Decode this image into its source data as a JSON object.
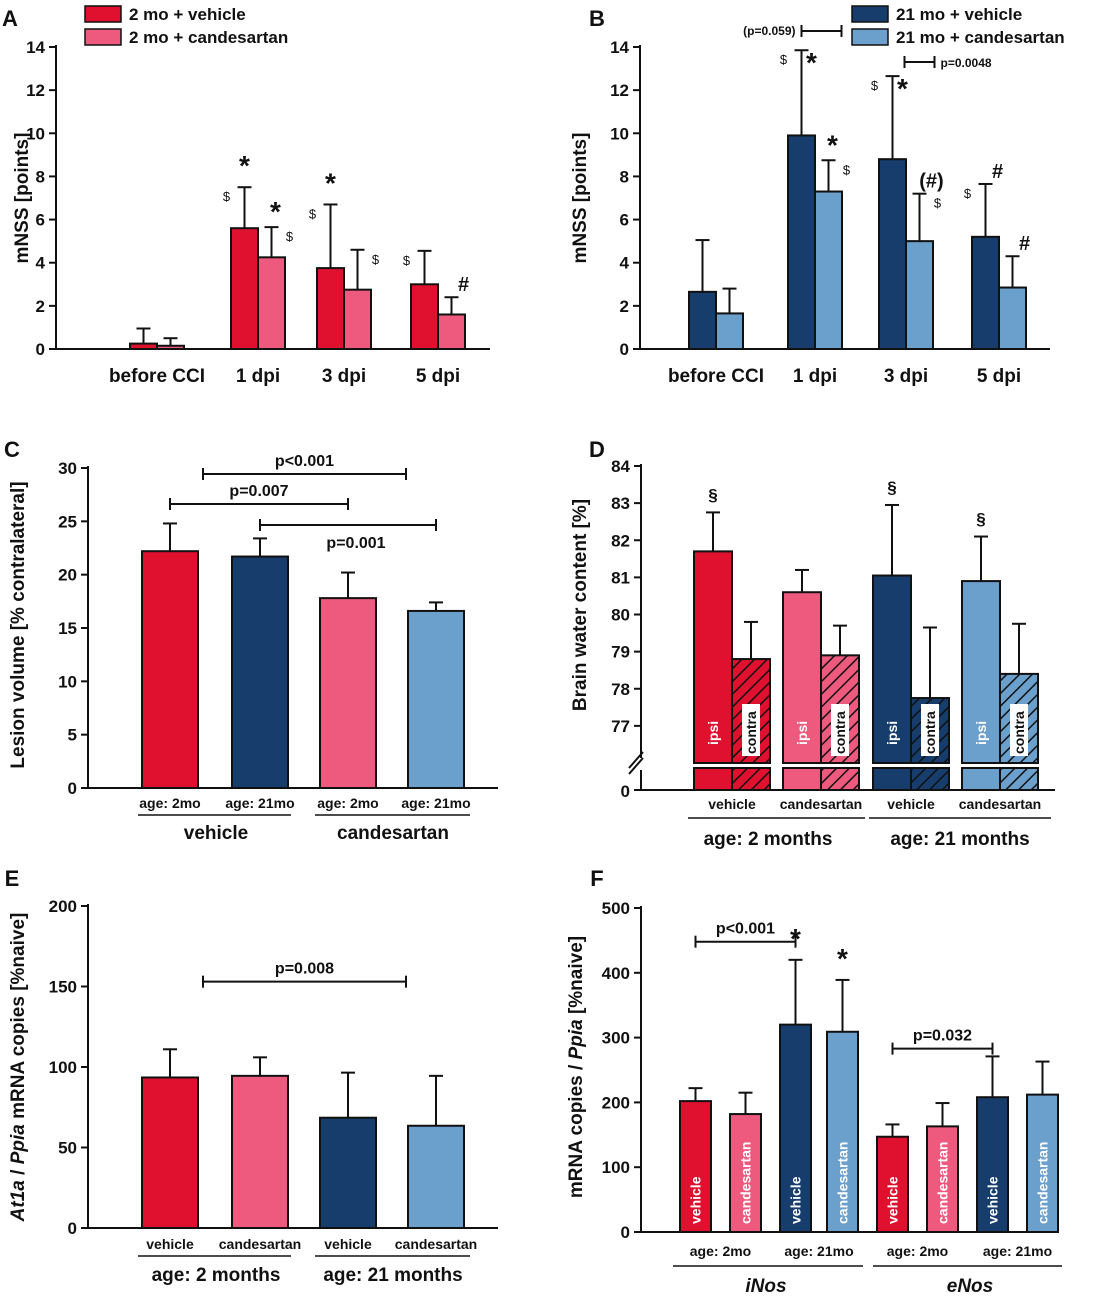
{
  "colors": {
    "young_vehicle": "#e0102f",
    "young_candesartan": "#ee5a7e",
    "old_vehicle": "#163d6b",
    "old_candesartan": "#6b9fcc"
  },
  "chart_data": [
    {
      "panel": "A",
      "type": "bar",
      "ylabel": "mNSS [points]",
      "ylim": [
        0,
        14
      ],
      "yticks": [
        0,
        2,
        4,
        6,
        8,
        10,
        12,
        14
      ],
      "categories": [
        "before CCI",
        "1 dpi",
        "3 dpi",
        "5 dpi"
      ],
      "series": [
        {
          "name": "2 mo + vehicle",
          "color_key": "young_vehicle",
          "values": [
            0.25,
            5.6,
            3.75,
            3.0
          ],
          "errors": [
            0.7,
            1.9,
            2.95,
            1.55
          ]
        },
        {
          "name": "2 mo + candesartan",
          "color_key": "young_candesartan",
          "values": [
            0.15,
            4.25,
            2.75,
            1.6
          ],
          "errors": [
            0.35,
            1.4,
            1.85,
            0.8
          ]
        }
      ],
      "annotations": [
        {
          "cat": 1,
          "s": 0,
          "marks": [
            "$",
            "*"
          ]
        },
        {
          "cat": 1,
          "s": 1,
          "marks": [
            "*",
            "$"
          ]
        },
        {
          "cat": 2,
          "s": 0,
          "marks": [
            "$",
            "*"
          ]
        },
        {
          "cat": 2,
          "s": 1,
          "marks": [
            "$"
          ]
        },
        {
          "cat": 3,
          "s": 0,
          "marks": [
            "$"
          ]
        },
        {
          "cat": 3,
          "s": 1,
          "marks": [
            "#"
          ]
        }
      ]
    },
    {
      "panel": "B",
      "type": "bar",
      "ylabel": "mNSS [points]",
      "ylim": [
        0,
        14
      ],
      "yticks": [
        0,
        2,
        4,
        6,
        8,
        10,
        12,
        14
      ],
      "categories": [
        "before CCI",
        "1 dpi",
        "3 dpi",
        "5 dpi"
      ],
      "series": [
        {
          "name": "21 mo + vehicle",
          "color_key": "old_vehicle",
          "values": [
            2.65,
            9.9,
            8.8,
            5.2
          ],
          "errors": [
            2.4,
            3.95,
            3.85,
            2.45
          ]
        },
        {
          "name": "21 mo + candesartan",
          "color_key": "old_candesartan",
          "values": [
            1.65,
            7.3,
            5.0,
            2.85
          ],
          "errors": [
            1.15,
            1.45,
            2.2,
            1.45
          ]
        }
      ],
      "annotations": [
        {
          "cat": 1,
          "s": 0,
          "marks": [
            "$",
            "*"
          ]
        },
        {
          "cat": 1,
          "s": 1,
          "marks": [
            "*",
            "$"
          ]
        },
        {
          "cat": 2,
          "s": 0,
          "marks": [
            "$",
            "*"
          ]
        },
        {
          "cat": 2,
          "s": 1,
          "marks": [
            "(#)",
            "$"
          ]
        },
        {
          "cat": 3,
          "s": 0,
          "marks": [
            "$",
            "#"
          ]
        },
        {
          "cat": 3,
          "s": 1,
          "marks": [
            "#"
          ]
        }
      ],
      "comparisons": [
        {
          "label": "(p=0.059)",
          "cat": 1
        },
        {
          "label": "p=0.0048",
          "cat": 2
        }
      ]
    },
    {
      "panel": "C",
      "type": "bar",
      "ylabel": "Lesion volume [% contralateral]",
      "ylim": [
        0,
        30
      ],
      "yticks": [
        0,
        5,
        10,
        15,
        20,
        25,
        30
      ],
      "bars": [
        {
          "label": "age: 2mo",
          "color_key": "young_vehicle",
          "value": 22.2,
          "error": 2.6
        },
        {
          "label": "age: 21mo",
          "color_key": "old_vehicle",
          "value": 21.7,
          "error": 1.7
        },
        {
          "label": "age: 2mo",
          "color_key": "young_candesartan",
          "value": 17.8,
          "error": 2.4
        },
        {
          "label": "age: 21mo",
          "color_key": "old_candesartan",
          "value": 16.6,
          "error": 0.8
        }
      ],
      "groups": [
        "vehicle",
        "candesartan"
      ],
      "comparisons": [
        {
          "label": "p<0.001",
          "from": 0,
          "to": 2,
          "y": 29.1
        },
        {
          "label": "p=0.007",
          "from": 0,
          "to": 2,
          "y": 26.6
        },
        {
          "label": "p=0.001",
          "from": 1,
          "to": 3,
          "y": 24.4
        }
      ]
    },
    {
      "panel": "D",
      "type": "bar",
      "ylabel": "Brain water content [%]",
      "ylim": [
        76,
        84
      ],
      "axis_break": true,
      "yticks": [
        77,
        78,
        79,
        80,
        81,
        82,
        83,
        84
      ],
      "zero_tick": "0",
      "pairs": [
        {
          "treatment": "vehicle",
          "color_key": "young_vehicle",
          "ipsi": 81.7,
          "ipsi_err": 1.05,
          "contra": 78.8,
          "contra_err": 1.0,
          "mark": "§"
        },
        {
          "treatment": "candesartan",
          "color_key": "young_candesartan",
          "ipsi": 80.6,
          "ipsi_err": 0.6,
          "contra": 78.9,
          "contra_err": 0.8,
          "mark": ""
        },
        {
          "treatment": "vehicle",
          "color_key": "old_vehicle",
          "ipsi": 81.05,
          "ipsi_err": 1.9,
          "contra": 77.75,
          "contra_err": 1.9,
          "mark": "§"
        },
        {
          "treatment": "candesartan",
          "color_key": "old_candesartan",
          "ipsi": 80.9,
          "ipsi_err": 1.2,
          "contra": 78.4,
          "contra_err": 1.35,
          "mark": "§"
        }
      ],
      "bar_labels": {
        "ipsi": "ipsi",
        "contra": "contra"
      },
      "groups": [
        "age: 2 months",
        "age: 21 months"
      ]
    },
    {
      "panel": "E",
      "type": "bar",
      "ylabel_parts": [
        "At1a",
        " / ",
        "Ppia",
        " mRNA copies [%naive]"
      ],
      "ylim": [
        0,
        200
      ],
      "yticks": [
        0,
        50,
        100,
        150,
        200
      ],
      "bars": [
        {
          "label": "vehicle",
          "color_key": "young_vehicle",
          "value": 93.5,
          "error": 17.5
        },
        {
          "label": "candesartan",
          "color_key": "young_candesartan",
          "value": 94.5,
          "error": 11.5
        },
        {
          "label": "vehicle",
          "color_key": "old_vehicle",
          "value": 68.5,
          "error": 28
        },
        {
          "label": "candesartan",
          "color_key": "old_candesartan",
          "value": 63.5,
          "error": 31
        }
      ],
      "groups": [
        "age: 2 months",
        "age: 21 months"
      ],
      "comparisons": [
        {
          "label": "p=0.008",
          "from": 0,
          "to": 2,
          "y": 153
        }
      ]
    },
    {
      "panel": "F",
      "type": "bar",
      "ylabel_parts": [
        "mRNA copies / ",
        "Ppia",
        " [%naive]"
      ],
      "ylim": [
        0,
        500
      ],
      "yticks": [
        0,
        100,
        200,
        300,
        400,
        500
      ],
      "bars": [
        {
          "label": "vehicle",
          "color_key": "young_vehicle",
          "value": 202,
          "error": 20,
          "mark": ""
        },
        {
          "label": "candesartan",
          "color_key": "young_candesartan",
          "value": 182,
          "error": 33,
          "mark": ""
        },
        {
          "label": "vehicle",
          "color_key": "old_vehicle",
          "value": 320,
          "error": 100,
          "mark": "*"
        },
        {
          "label": "candesartan",
          "color_key": "old_candesartan",
          "value": 309,
          "error": 80,
          "mark": "*"
        },
        {
          "label": "vehicle",
          "color_key": "young_vehicle",
          "value": 147,
          "error": 19,
          "mark": ""
        },
        {
          "label": "candesartan",
          "color_key": "young_candesartan",
          "value": 163,
          "error": 36,
          "mark": ""
        },
        {
          "label": "vehicle",
          "color_key": "old_vehicle",
          "value": 208,
          "error": 63,
          "mark": ""
        },
        {
          "label": "candesartan",
          "color_key": "old_candesartan",
          "value": 212,
          "error": 51,
          "mark": ""
        }
      ],
      "age_groups": [
        "age: 2mo",
        "age: 21mo",
        "age: 2mo",
        "age: 21mo"
      ],
      "genes": [
        "iNos",
        "eNos"
      ],
      "comparisons": [
        {
          "label": "p<0.001",
          "from": 0,
          "to": 2,
          "y": 448
        },
        {
          "label": "p=0.032",
          "from": 4,
          "to": 6,
          "y": 283
        }
      ]
    }
  ]
}
